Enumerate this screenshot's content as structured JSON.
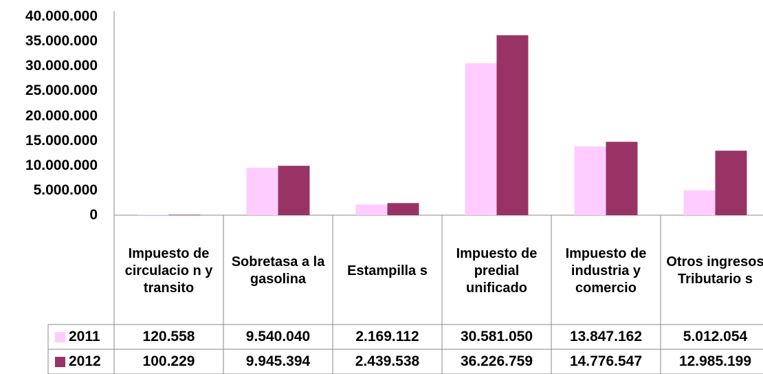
{
  "chart_data": {
    "type": "bar",
    "categories": [
      "Impuesto de circulacio n y transito",
      "Sobretasa a la gasolina",
      "Estampilla s",
      "Impuesto de predial unificado",
      "Impuesto de industria y comercio",
      "Otros ingresos Tributario s"
    ],
    "series": [
      {
        "name": "2011",
        "color": "#ffccff",
        "values": [
          120558,
          9540040,
          2169112,
          30581050,
          13847162,
          5012054
        ],
        "labels": [
          "120.558",
          "9.540.040",
          "2.169.112",
          "30.581.050",
          "13.847.162",
          "5.012.054"
        ]
      },
      {
        "name": "2012",
        "color": "#993366",
        "values": [
          100229,
          9945394,
          2439538,
          36226759,
          14776547,
          12985199
        ],
        "labels": [
          "100.229",
          "9.945.394",
          "2.439.538",
          "36.226.759",
          "14.776.547",
          "12.985.199"
        ]
      }
    ],
    "ylim": [
      0,
      40000000
    ],
    "yticks": [
      {
        "value": 0,
        "label": "0"
      },
      {
        "value": 5000000,
        "label": "5.000.000"
      },
      {
        "value": 10000000,
        "label": "10.000.000"
      },
      {
        "value": 15000000,
        "label": "15.000.000"
      },
      {
        "value": 20000000,
        "label": "20.000.000"
      },
      {
        "value": 25000000,
        "label": "25.000.000"
      },
      {
        "value": 30000000,
        "label": "30.000.000"
      },
      {
        "value": 35000000,
        "label": "35.000.000"
      },
      {
        "value": 40000000,
        "label": "40.000.000"
      }
    ],
    "grid": false,
    "legend": "data-table"
  }
}
